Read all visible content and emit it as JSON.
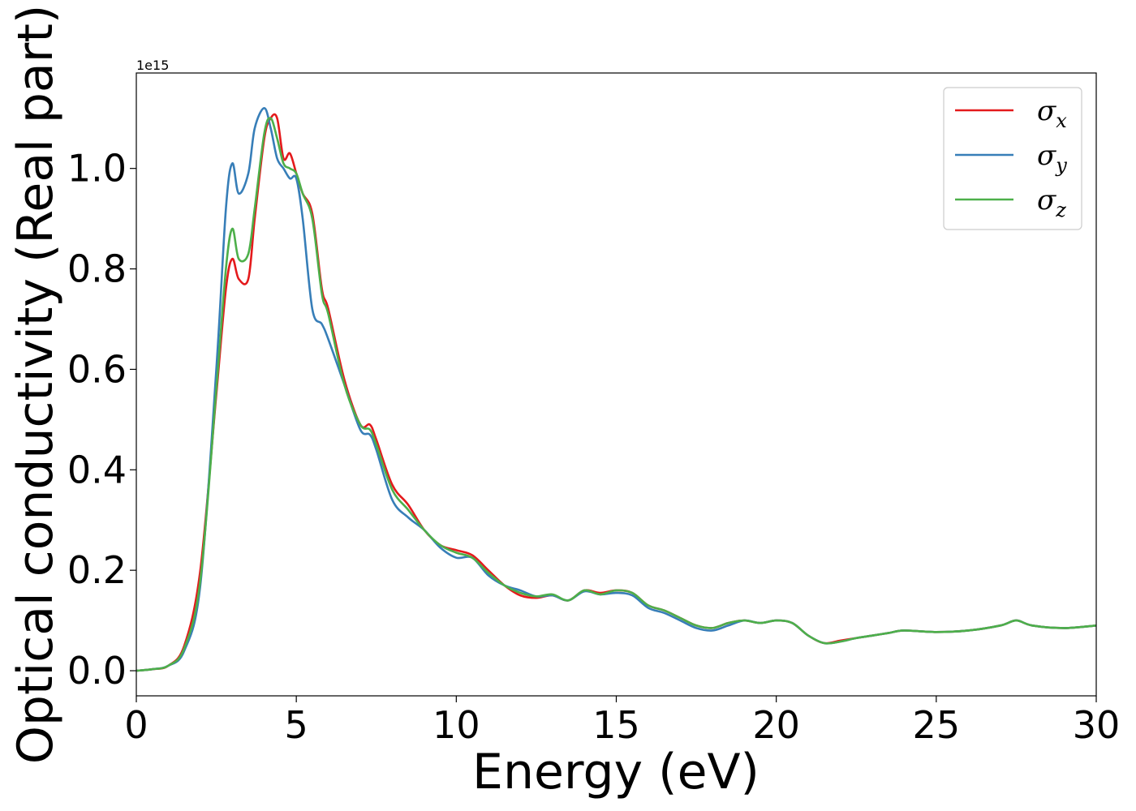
{
  "chart_data": {
    "type": "line",
    "title": "",
    "xlabel": "Energy (eV)",
    "ylabel": "Optical conductivity (Real part)",
    "y_offset_label": "1e15",
    "xlim": [
      0,
      30
    ],
    "ylim": [
      -0.05,
      1.19
    ],
    "xticks": [
      0,
      5,
      10,
      15,
      20,
      25,
      30
    ],
    "xtick_labels": [
      "0",
      "5",
      "10",
      "15",
      "20",
      "25",
      "30"
    ],
    "yticks": [
      0.0,
      0.2,
      0.4,
      0.6,
      0.8,
      1.0
    ],
    "ytick_labels": [
      "0.0",
      "0.2",
      "0.4",
      "0.6",
      "0.8",
      "1.0"
    ],
    "grid": false,
    "legend_position": "top-right",
    "series": [
      {
        "name": "σx",
        "symbol": "σ",
        "subscript": "x",
        "color": "#e41a1c",
        "x": [
          0,
          0.5,
          1.0,
          1.5,
          2.0,
          2.5,
          2.8,
          3.0,
          3.2,
          3.5,
          3.7,
          4.0,
          4.2,
          4.4,
          4.6,
          4.8,
          5.0,
          5.2,
          5.5,
          5.8,
          6.0,
          6.5,
          7.0,
          7.3,
          7.5,
          8.0,
          8.5,
          9.0,
          9.5,
          10.0,
          10.5,
          11.0,
          11.5,
          12.0,
          12.5,
          13.0,
          13.5,
          14.0,
          14.5,
          15.0,
          15.5,
          16.0,
          16.5,
          17.0,
          17.5,
          18.0,
          18.5,
          19.0,
          19.5,
          20.0,
          20.5,
          21.0,
          21.5,
          22.0,
          22.5,
          23.0,
          23.5,
          24.0,
          25.0,
          26.0,
          27.0,
          27.5,
          28.0,
          29.0,
          30.0
        ],
        "y": [
          0,
          0.003,
          0.01,
          0.05,
          0.2,
          0.55,
          0.76,
          0.82,
          0.78,
          0.78,
          0.9,
          1.06,
          1.1,
          1.1,
          1.02,
          1.03,
          0.99,
          0.95,
          0.91,
          0.76,
          0.72,
          0.58,
          0.49,
          0.49,
          0.46,
          0.37,
          0.33,
          0.28,
          0.25,
          0.24,
          0.23,
          0.2,
          0.17,
          0.15,
          0.145,
          0.15,
          0.14,
          0.16,
          0.155,
          0.16,
          0.155,
          0.13,
          0.12,
          0.105,
          0.09,
          0.085,
          0.095,
          0.1,
          0.095,
          0.1,
          0.095,
          0.07,
          0.055,
          0.06,
          0.065,
          0.07,
          0.075,
          0.08,
          0.077,
          0.08,
          0.09,
          0.1,
          0.09,
          0.085,
          0.09
        ]
      },
      {
        "name": "σy",
        "symbol": "σ",
        "subscript": "y",
        "color": "#377eb8",
        "x": [
          0,
          0.5,
          1.0,
          1.5,
          2.0,
          2.5,
          2.8,
          3.0,
          3.2,
          3.5,
          3.7,
          4.0,
          4.2,
          4.4,
          4.6,
          4.8,
          5.0,
          5.2,
          5.5,
          5.8,
          6.0,
          6.5,
          7.0,
          7.3,
          7.5,
          8.0,
          8.5,
          9.0,
          9.5,
          10.0,
          10.5,
          11.0,
          11.5,
          12.0,
          12.5,
          13.0,
          13.5,
          14.0,
          14.5,
          15.0,
          15.5,
          16.0,
          16.5,
          17.0,
          17.5,
          18.0,
          18.5,
          19.0,
          19.5,
          20.0,
          20.5,
          21.0,
          21.5,
          22.0,
          22.5,
          23.0,
          23.5,
          24.0,
          25.0,
          26.0,
          27.0,
          27.5,
          28.0,
          29.0,
          30.0
        ],
        "y": [
          0,
          0.003,
          0.01,
          0.04,
          0.17,
          0.6,
          0.92,
          1.01,
          0.95,
          0.99,
          1.08,
          1.12,
          1.08,
          1.02,
          1.0,
          0.98,
          0.98,
          0.9,
          0.72,
          0.69,
          0.66,
          0.57,
          0.48,
          0.47,
          0.44,
          0.34,
          0.305,
          0.28,
          0.245,
          0.225,
          0.225,
          0.19,
          0.17,
          0.16,
          0.148,
          0.15,
          0.14,
          0.158,
          0.152,
          0.155,
          0.15,
          0.125,
          0.115,
          0.1,
          0.085,
          0.08,
          0.09,
          0.1,
          0.095,
          0.1,
          0.095,
          0.07,
          0.055,
          0.058,
          0.065,
          0.07,
          0.075,
          0.08,
          0.077,
          0.08,
          0.09,
          0.1,
          0.09,
          0.085,
          0.09
        ]
      },
      {
        "name": "σz",
        "symbol": "σ",
        "subscript": "z",
        "color": "#4daf4a",
        "x": [
          0,
          0.5,
          1.0,
          1.5,
          2.0,
          2.5,
          2.8,
          3.0,
          3.2,
          3.5,
          3.7,
          4.0,
          4.2,
          4.4,
          4.6,
          4.8,
          5.0,
          5.2,
          5.5,
          5.8,
          6.0,
          6.5,
          7.0,
          7.3,
          7.5,
          8.0,
          8.5,
          9.0,
          9.5,
          10.0,
          10.5,
          11.0,
          11.5,
          12.0,
          12.5,
          13.0,
          13.5,
          14.0,
          14.5,
          15.0,
          15.5,
          16.0,
          16.5,
          17.0,
          17.5,
          18.0,
          18.5,
          19.0,
          19.5,
          20.0,
          20.5,
          21.0,
          21.5,
          22.0,
          22.5,
          23.0,
          23.5,
          24.0,
          25.0,
          26.0,
          27.0,
          27.5,
          28.0,
          29.0,
          30.0
        ],
        "y": [
          0,
          0.003,
          0.01,
          0.045,
          0.18,
          0.56,
          0.8,
          0.88,
          0.82,
          0.83,
          0.92,
          1.07,
          1.1,
          1.06,
          1.01,
          1.0,
          0.99,
          0.95,
          0.9,
          0.75,
          0.71,
          0.57,
          0.49,
          0.48,
          0.45,
          0.36,
          0.32,
          0.28,
          0.25,
          0.235,
          0.225,
          0.195,
          0.17,
          0.155,
          0.148,
          0.152,
          0.14,
          0.16,
          0.152,
          0.16,
          0.155,
          0.13,
          0.12,
          0.105,
          0.09,
          0.085,
          0.095,
          0.1,
          0.095,
          0.1,
          0.095,
          0.07,
          0.055,
          0.058,
          0.065,
          0.07,
          0.075,
          0.08,
          0.077,
          0.08,
          0.09,
          0.1,
          0.09,
          0.085,
          0.09
        ]
      }
    ]
  }
}
